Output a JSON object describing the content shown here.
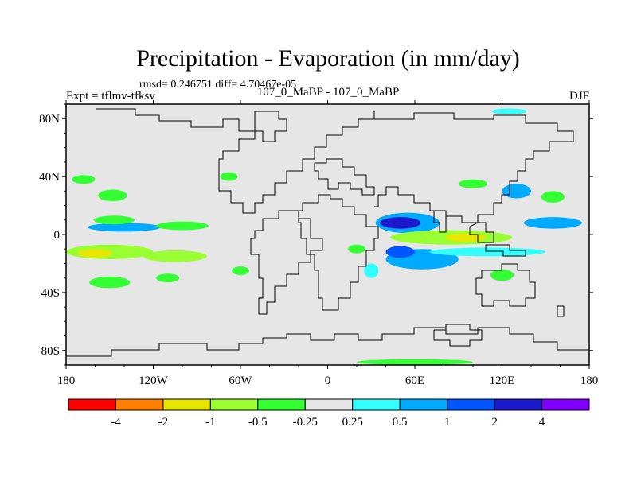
{
  "chart_data": {
    "type": "heatmap",
    "title": "Precipitation - Evaporation (in mm/day)",
    "stats_text": "rmsd= 0.246751 diff= 4.70467e-05",
    "left_label": "Expt = tflmv-tfksv",
    "center_label": "107_0_MaBP - 107_0_MaBP",
    "season": "DJF",
    "x_range": [
      -180,
      180
    ],
    "y_range": [
      -90,
      90
    ],
    "x_ticks": [
      {
        "value": -180,
        "label": "180"
      },
      {
        "value": -120,
        "label": "120W"
      },
      {
        "value": -60,
        "label": "60W"
      },
      {
        "value": 0,
        "label": "0"
      },
      {
        "value": 60,
        "label": "60E"
      },
      {
        "value": 120,
        "label": "120E"
      },
      {
        "value": 180,
        "label": "180"
      }
    ],
    "y_ticks": [
      {
        "value": 80,
        "label": "80N"
      },
      {
        "value": 40,
        "label": "40N"
      },
      {
        "value": 0,
        "label": "0"
      },
      {
        "value": -40,
        "label": "40S"
      },
      {
        "value": -80,
        "label": "80S"
      }
    ],
    "colorbar": {
      "colors": [
        "#ff0000",
        "#ff8000",
        "#e6e600",
        "#99ff33",
        "#33ff33",
        "#e6e6e6",
        "#33ffff",
        "#00aaff",
        "#0055ff",
        "#1a1acc",
        "#8000ff"
      ],
      "labels": [
        "-4",
        "-2",
        "-1",
        "-0.5",
        "-0.25",
        "0.25",
        "0.5",
        "1",
        "2",
        "4"
      ]
    },
    "background_color": "#e6e6e6",
    "anomalies": [
      {
        "name": "pacific-south-green",
        "lon": -150,
        "lat": -12,
        "rlon": 30,
        "rlat": 5,
        "level": "-0.5"
      },
      {
        "name": "pacific-south-green-2",
        "lon": -105,
        "lat": -15,
        "rlon": 22,
        "rlat": 4,
        "level": "-0.5"
      },
      {
        "name": "pacific-south-yellowgreen",
        "lon": -160,
        "lat": -13,
        "rlon": 12,
        "rlat": 3,
        "level": "-1"
      },
      {
        "name": "pacific-equator-cyan",
        "lon": -140,
        "lat": 5,
        "rlon": 25,
        "rlat": 3,
        "level": "0.5"
      },
      {
        "name": "pacific-north-green",
        "lon": -100,
        "lat": 6,
        "rlon": 18,
        "rlat": 3,
        "level": "-0.25"
      },
      {
        "name": "pacific-subtropic-green",
        "lon": -147,
        "lat": 10,
        "rlon": 14,
        "rlat": 3,
        "level": "-0.25"
      },
      {
        "name": "nw-pacific-green",
        "lon": -168,
        "lat": 38,
        "rlon": 8,
        "rlat": 3,
        "level": "-0.25"
      },
      {
        "name": "ne-pacific-green",
        "lon": -148,
        "lat": 27,
        "rlon": 10,
        "rlat": 4,
        "level": "-0.25"
      },
      {
        "name": "s-pacific-green-a",
        "lon": -150,
        "lat": -33,
        "rlon": 14,
        "rlat": 4,
        "level": "-0.25"
      },
      {
        "name": "s-pacific-green-b",
        "lon": -110,
        "lat": -30,
        "rlon": 8,
        "rlat": 3,
        "level": "-0.25"
      },
      {
        "name": "s-atlantic-green",
        "lon": -60,
        "lat": -25,
        "rlon": 6,
        "rlat": 3,
        "level": "-0.25"
      },
      {
        "name": "indian-north-blue",
        "lon": 55,
        "lat": 8,
        "rlon": 22,
        "rlat": 7,
        "level": "0.5"
      },
      {
        "name": "indian-north-deepblue",
        "lon": 50,
        "lat": 8,
        "rlon": 14,
        "rlat": 4,
        "level": "2"
      },
      {
        "name": "indian-equator-green",
        "lon": 85,
        "lat": -2,
        "rlon": 42,
        "rlat": 5,
        "level": "-0.5"
      },
      {
        "name": "indian-equator-yellow",
        "lon": 95,
        "lat": -2,
        "rlon": 14,
        "rlat": 3,
        "level": "-1"
      },
      {
        "name": "indian-south-blue",
        "lon": 65,
        "lat": -17,
        "rlon": 25,
        "rlat": 7,
        "level": "0.5"
      },
      {
        "name": "indian-south-deepblue",
        "lon": 50,
        "lat": -12,
        "rlon": 10,
        "rlat": 4,
        "level": "1"
      },
      {
        "name": "maritime-cyan",
        "lon": 110,
        "lat": -12,
        "rlon": 40,
        "rlat": 3,
        "level": "0.25"
      },
      {
        "name": "w-pacific-north-blue",
        "lon": 155,
        "lat": 8,
        "rlon": 20,
        "rlat": 4,
        "level": "0.5"
      },
      {
        "name": "nw-pacific-green",
        "lon": 155,
        "lat": 26,
        "rlon": 8,
        "rlat": 4,
        "level": "-0.25"
      },
      {
        "name": "japan-blue",
        "lon": 130,
        "lat": 30,
        "rlon": 10,
        "rlat": 5,
        "level": "0.5"
      },
      {
        "name": "asia-green",
        "lon": 100,
        "lat": 35,
        "rlon": 10,
        "rlat": 3,
        "level": "-0.25"
      },
      {
        "name": "australia-green",
        "lon": 120,
        "lat": -28,
        "rlon": 8,
        "rlat": 4,
        "level": "-0.25"
      },
      {
        "name": "africa-cyan",
        "lon": 30,
        "lat": -25,
        "rlon": 5,
        "rlat": 5,
        "level": "0.25"
      },
      {
        "name": "africa-green",
        "lon": 20,
        "lat": -10,
        "rlon": 6,
        "rlat": 3,
        "level": "-0.25"
      },
      {
        "name": "southern-ocean-green",
        "lon": 60,
        "lat": -88,
        "rlon": 40,
        "rlat": 2,
        "level": "-0.25"
      },
      {
        "name": "arctic-cyan",
        "lon": 125,
        "lat": 85,
        "rlon": 12,
        "rlat": 2,
        "level": "0.25"
      },
      {
        "name": "n-atlantic-green",
        "lon": -68,
        "lat": 40,
        "rlon": 6,
        "rlat": 3,
        "level": "-0.25"
      }
    ]
  }
}
